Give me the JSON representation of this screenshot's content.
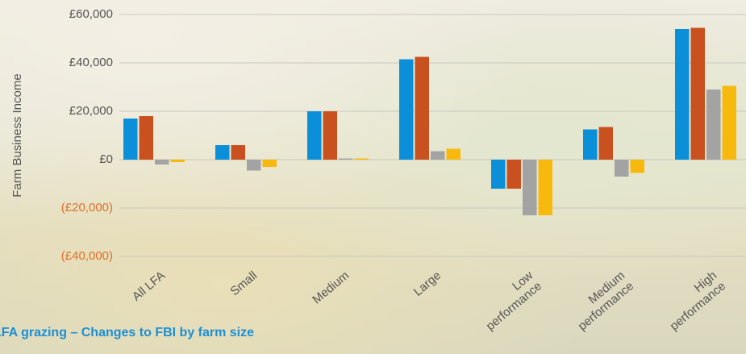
{
  "chart_data": {
    "type": "bar",
    "title": "LFA grazing – Changes to FBI by farm size",
    "y_label": "Farm Business Income",
    "categories": [
      "All LFA",
      "Small",
      "Medium",
      "Large",
      "Low performance",
      "Medium performance",
      "High performance"
    ],
    "series": [
      {
        "color": "#0b8fd8",
        "values": [
          17000,
          6000,
          20000,
          41500,
          -12000,
          12500,
          54000
        ]
      },
      {
        "color": "#c9511f",
        "values": [
          18000,
          6000,
          20000,
          42500,
          -12000,
          13500,
          54500
        ]
      },
      {
        "color": "#a3a3a3",
        "values": [
          -2000,
          -4500,
          500,
          3500,
          -23000,
          -7000,
          29000
        ]
      },
      {
        "color": "#f8b90f",
        "values": [
          -1000,
          -3000,
          500,
          4500,
          -23000,
          -5500,
          30500
        ]
      }
    ],
    "ylim": [
      -40000,
      60000
    ],
    "yticks": [
      {
        "value": -40000,
        "label": "(£40,000)"
      },
      {
        "value": -20000,
        "label": "(£20,000)"
      },
      {
        "value": 0,
        "label": "£0"
      },
      {
        "value": 20000,
        "label": "£20,000"
      },
      {
        "value": 40000,
        "label": "£40,000"
      },
      {
        "value": 60000,
        "label": "£60,000"
      }
    ],
    "grid": true
  }
}
